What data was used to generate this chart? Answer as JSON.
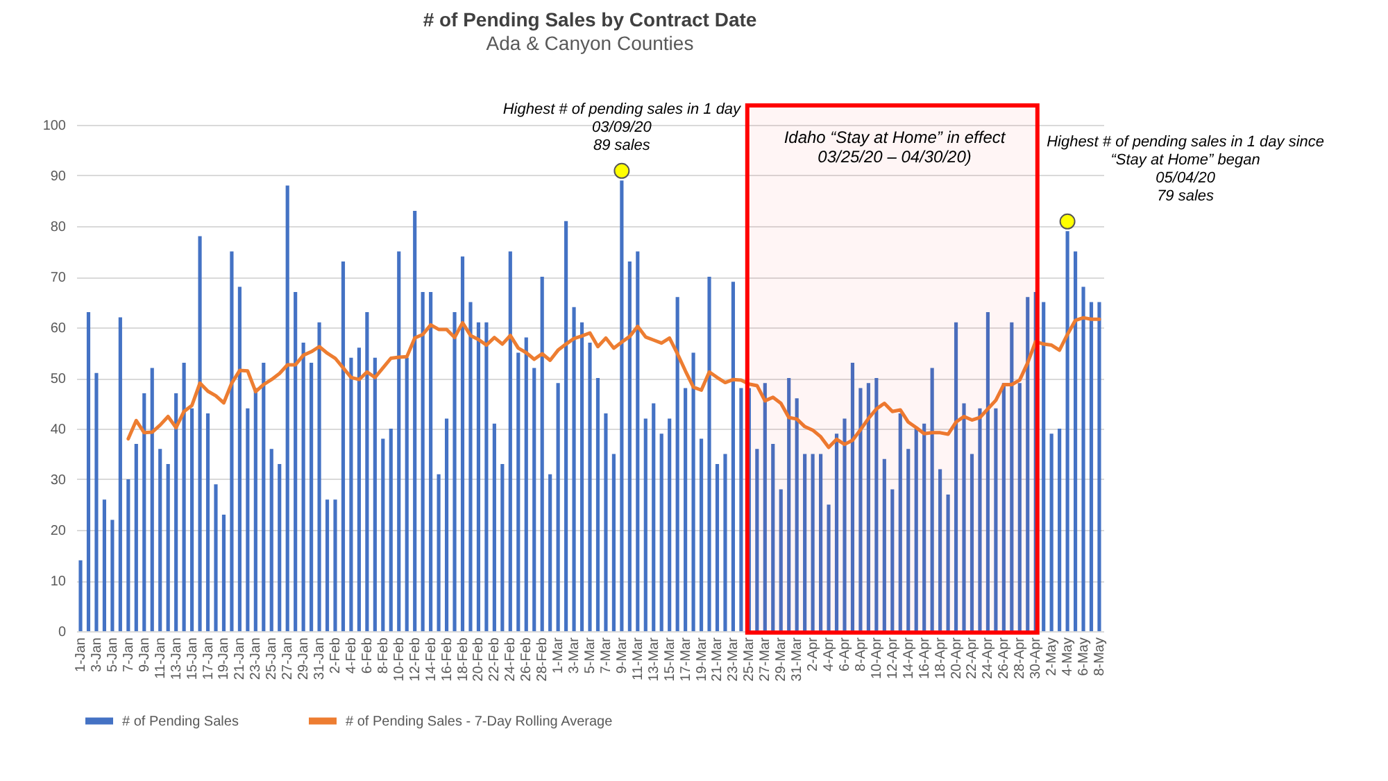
{
  "chart_data": {
    "type": "bar",
    "title": "# of Pending Sales by Contract Date",
    "subtitle": "Ada & Canyon Counties",
    "categories": [
      "1-Jan",
      null,
      "3-Jan",
      null,
      "5-Jan",
      null,
      "7-Jan",
      null,
      "9-Jan",
      null,
      "11-Jan",
      null,
      "13-Jan",
      null,
      "15-Jan",
      null,
      "17-Jan",
      null,
      "19-Jan",
      null,
      "21-Jan",
      null,
      "23-Jan",
      null,
      "25-Jan",
      null,
      "27-Jan",
      null,
      "29-Jan",
      null,
      "31-Jan",
      null,
      "2-Feb",
      null,
      "4-Feb",
      null,
      "6-Feb",
      null,
      "8-Feb",
      null,
      "10-Feb",
      null,
      "12-Feb",
      null,
      "14-Feb",
      null,
      "16-Feb",
      null,
      "18-Feb",
      null,
      "20-Feb",
      null,
      "22-Feb",
      null,
      "24-Feb",
      null,
      "26-Feb",
      null,
      "28-Feb",
      null,
      "1-Mar",
      null,
      "3-Mar",
      null,
      "5-Mar",
      null,
      "7-Mar",
      null,
      "9-Mar",
      null,
      "11-Mar",
      null,
      "13-Mar",
      null,
      "15-Mar",
      null,
      "17-Mar",
      null,
      "19-Mar",
      null,
      "21-Mar",
      null,
      "23-Mar",
      null,
      "25-Mar",
      null,
      "27-Mar",
      null,
      "29-Mar",
      null,
      "31-Mar",
      null,
      "2-Apr",
      null,
      "4-Apr",
      null,
      "6-Apr",
      null,
      "8-Apr",
      null,
      "10-Apr",
      null,
      "12-Apr",
      null,
      "14-Apr",
      null,
      "16-Apr",
      null,
      "18-Apr",
      null,
      "20-Apr",
      null,
      "22-Apr",
      null,
      "24-Apr",
      null,
      "26-Apr",
      null,
      "28-Apr",
      null,
      "30-Apr",
      null,
      "2-May",
      null,
      "4-May",
      null,
      "6-May",
      null,
      "8-May"
    ],
    "series": [
      {
        "name": "# of Pending Sales",
        "type": "bar",
        "color": "#4472c4",
        "values": [
          14,
          63,
          51,
          26,
          22,
          62,
          30,
          37,
          47,
          52,
          36,
          33,
          47,
          53,
          44,
          78,
          43,
          29,
          23,
          75,
          68,
          44,
          48,
          53,
          36,
          33,
          88,
          67,
          57,
          53,
          61,
          26,
          26,
          73,
          54,
          56,
          63,
          54,
          38,
          40,
          75,
          54,
          83,
          67,
          67,
          31,
          42,
          63,
          74,
          65,
          61,
          61,
          41,
          33,
          75,
          55,
          58,
          52,
          70,
          31,
          49,
          81,
          64,
          61,
          57,
          50,
          43,
          35,
          89,
          73,
          75,
          42,
          45,
          39,
          42,
          66,
          48,
          55,
          38,
          70,
          33,
          35,
          69,
          48,
          48,
          36,
          49,
          37,
          28,
          50,
          46,
          35,
          35,
          35,
          25,
          39,
          42,
          53,
          48,
          49,
          50,
          34,
          28,
          43,
          36,
          40,
          41,
          52,
          32,
          27,
          61,
          45,
          35,
          44,
          63,
          44,
          49,
          61,
          49,
          66,
          67,
          65,
          39,
          40,
          79,
          75,
          68,
          65,
          65
        ]
      },
      {
        "name": "# of Pending Sales - 7-Day Rolling Average",
        "type": "line",
        "color": "#ed7d31",
        "values": [
          null,
          null,
          null,
          null,
          null,
          null,
          38,
          41.6,
          39.2,
          39.3,
          40.7,
          42.4,
          40.2,
          43.4,
          44.6,
          49,
          47.4,
          46.5,
          45.1,
          49,
          51.5,
          51.4,
          47.3,
          48.7,
          49.7,
          50.9,
          52.6,
          52.6,
          54.5,
          55.2,
          56.2,
          54.9,
          53.9,
          52,
          50.1,
          49.7,
          51.2,
          50.1,
          52,
          53.9,
          54.1,
          54.2,
          57.9,
          58.6,
          60.5,
          59.6,
          59.6,
          58,
          60.9,
          58.4,
          57.6,
          56.5,
          58,
          56.7,
          58.4,
          55.9,
          55,
          53.7,
          54.8,
          53.5,
          55.5,
          56.7,
          57.8,
          58.3,
          58.9,
          56.2,
          57.9,
          55.9,
          57.1,
          58.2,
          60.2,
          58.1,
          57.5,
          56.9,
          57.9,
          54.8,
          51.4,
          48.2,
          47.6,
          51.2,
          50.1,
          49.1,
          49.7,
          49.6,
          48.8,
          48.5,
          45.5,
          46.2,
          45,
          42.2,
          41.9,
          40.4,
          39.7,
          38.4,
          36.3,
          37.9,
          36.9,
          37.7,
          39.8,
          42,
          43.9,
          45,
          43.4,
          43.7,
          41.3,
          40.2,
          39,
          39.2,
          39.2,
          38.9,
          41.3,
          42.4,
          41.7,
          42.2,
          43.9,
          45.6,
          48.7,
          48.7,
          49.6,
          53,
          57.2,
          56.7,
          56.5,
          55.5,
          58.6,
          61.4,
          61.9,
          61.6,
          61.6
        ]
      }
    ],
    "ylim": [
      0,
      100
    ],
    "yticks": [
      0,
      10,
      20,
      30,
      40,
      50,
      60,
      70,
      80,
      90,
      100
    ],
    "grid": "y",
    "legend": "bottom",
    "annotations": [
      {
        "text": "Highest # of pending sales in 1 day\n03/09/20\n89 sales",
        "x": "9-Mar",
        "y": 89
      },
      {
        "text": "Highest # of pending sales in 1 day since\n“Stay at Home” began\n05/04/20\n79 sales",
        "x": "4-May",
        "y": 79
      }
    ],
    "bands": [
      {
        "axis": "x",
        "from": "25-Mar",
        "to": "30-Apr",
        "label": "Idaho “Stay at Home” in effect 03/25/20 – 04/30/20)",
        "color": "#ff0000"
      }
    ]
  }
}
